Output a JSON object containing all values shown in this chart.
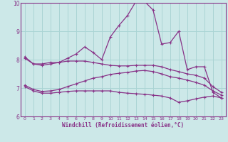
{
  "xlabel": "Windchill (Refroidissement éolien,°C)",
  "background_color": "#cce8e8",
  "grid_color": "#aad4d4",
  "line_color": "#883388",
  "xlim": [
    -0.5,
    23.5
  ],
  "ylim": [
    6,
    10
  ],
  "yticks": [
    6,
    7,
    8,
    9,
    10
  ],
  "xticks": [
    0,
    1,
    2,
    3,
    4,
    5,
    6,
    7,
    8,
    9,
    10,
    11,
    12,
    13,
    14,
    15,
    16,
    17,
    18,
    19,
    20,
    21,
    22,
    23
  ],
  "series": {
    "line1": [
      8.1,
      7.85,
      7.8,
      7.85,
      7.9,
      8.05,
      8.2,
      8.45,
      8.25,
      8.0,
      8.8,
      9.2,
      9.55,
      10.05,
      10.05,
      9.75,
      8.55,
      8.6,
      9.0,
      7.65,
      7.75,
      7.75,
      6.85,
      6.65
    ],
    "line2": [
      8.05,
      7.85,
      7.85,
      7.9,
      7.9,
      7.95,
      7.95,
      7.95,
      7.9,
      7.85,
      7.8,
      7.78,
      7.78,
      7.8,
      7.8,
      7.8,
      7.75,
      7.65,
      7.58,
      7.5,
      7.45,
      7.35,
      7.05,
      6.85
    ],
    "line3": [
      7.1,
      6.95,
      6.88,
      6.9,
      6.95,
      7.05,
      7.15,
      7.25,
      7.35,
      7.4,
      7.48,
      7.52,
      7.55,
      7.6,
      7.62,
      7.58,
      7.5,
      7.4,
      7.35,
      7.28,
      7.2,
      7.1,
      6.9,
      6.75
    ],
    "line4": [
      7.05,
      6.9,
      6.82,
      6.82,
      6.85,
      6.88,
      6.9,
      6.9,
      6.9,
      6.9,
      6.9,
      6.85,
      6.82,
      6.8,
      6.78,
      6.75,
      6.72,
      6.65,
      6.5,
      6.55,
      6.62,
      6.68,
      6.72,
      6.65
    ]
  }
}
